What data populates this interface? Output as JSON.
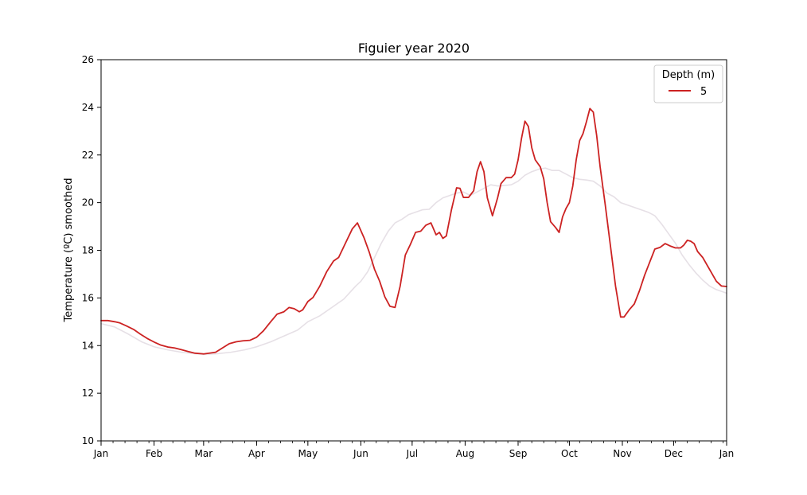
{
  "chart_data": {
    "type": "line",
    "title": "Figuier year 2020",
    "xlabel": "",
    "ylabel": "Temperature (ºC) smoothed",
    "ylim": [
      10,
      26
    ],
    "xlim": [
      "2020-01-01",
      "2021-01-01"
    ],
    "yticks": [
      10,
      12,
      14,
      16,
      18,
      20,
      22,
      24,
      26
    ],
    "xticks": [
      {
        "date": "2020-01-01",
        "label": "Jan"
      },
      {
        "date": "2020-02-01",
        "label": "Feb"
      },
      {
        "date": "2020-03-01",
        "label": "Mar"
      },
      {
        "date": "2020-04-01",
        "label": "Apr"
      },
      {
        "date": "2020-05-01",
        "label": "May"
      },
      {
        "date": "2020-06-01",
        "label": "Jun"
      },
      {
        "date": "2020-07-01",
        "label": "Jul"
      },
      {
        "date": "2020-08-01",
        "label": "Aug"
      },
      {
        "date": "2020-09-01",
        "label": "Sep"
      },
      {
        "date": "2020-10-01",
        "label": "Oct"
      },
      {
        "date": "2020-11-01",
        "label": "Nov"
      },
      {
        "date": "2020-12-01",
        "label": "Dec"
      },
      {
        "date": "2021-01-01",
        "label": "Jan"
      }
    ],
    "grid": false,
    "legend": {
      "title": "Depth (m)",
      "placement": "top-right"
    },
    "series": [
      {
        "name": "5",
        "color": "#cc2222",
        "points": [
          [
            "2020-01-01",
            15.05
          ],
          [
            "2020-01-05",
            15.05
          ],
          [
            "2020-01-09",
            15.0
          ],
          [
            "2020-01-12",
            14.95
          ],
          [
            "2020-01-16",
            14.82
          ],
          [
            "2020-01-20",
            14.68
          ],
          [
            "2020-01-24",
            14.48
          ],
          [
            "2020-01-28",
            14.3
          ],
          [
            "2020-02-01",
            14.15
          ],
          [
            "2020-02-05",
            14.02
          ],
          [
            "2020-02-09",
            13.94
          ],
          [
            "2020-02-13",
            13.9
          ],
          [
            "2020-02-17",
            13.83
          ],
          [
            "2020-02-21",
            13.75
          ],
          [
            "2020-02-25",
            13.68
          ],
          [
            "2020-03-01",
            13.65
          ],
          [
            "2020-03-04",
            13.68
          ],
          [
            "2020-03-08",
            13.72
          ],
          [
            "2020-03-12",
            13.9
          ],
          [
            "2020-03-16",
            14.08
          ],
          [
            "2020-03-20",
            14.16
          ],
          [
            "2020-03-24",
            14.2
          ],
          [
            "2020-03-28",
            14.22
          ],
          [
            "2020-04-01",
            14.35
          ],
          [
            "2020-04-05",
            14.62
          ],
          [
            "2020-04-09",
            14.98
          ],
          [
            "2020-04-13",
            15.32
          ],
          [
            "2020-04-17",
            15.42
          ],
          [
            "2020-04-20",
            15.6
          ],
          [
            "2020-04-23",
            15.55
          ],
          [
            "2020-04-26",
            15.42
          ],
          [
            "2020-04-28",
            15.5
          ],
          [
            "2020-05-01",
            15.85
          ],
          [
            "2020-05-04",
            16.02
          ],
          [
            "2020-05-08",
            16.5
          ],
          [
            "2020-05-12",
            17.1
          ],
          [
            "2020-05-16",
            17.55
          ],
          [
            "2020-05-19",
            17.7
          ],
          [
            "2020-05-23",
            18.3
          ],
          [
            "2020-05-27",
            18.9
          ],
          [
            "2020-05-30",
            19.15
          ],
          [
            "2020-06-03",
            18.5
          ],
          [
            "2020-06-06",
            17.9
          ],
          [
            "2020-06-09",
            17.2
          ],
          [
            "2020-06-12",
            16.7
          ],
          [
            "2020-06-15",
            16.05
          ],
          [
            "2020-06-18",
            15.65
          ],
          [
            "2020-06-21",
            15.6
          ],
          [
            "2020-06-24",
            16.5
          ],
          [
            "2020-06-27",
            17.8
          ],
          [
            "2020-06-30",
            18.25
          ],
          [
            "2020-07-03",
            18.75
          ],
          [
            "2020-07-06",
            18.8
          ],
          [
            "2020-07-09",
            19.05
          ],
          [
            "2020-07-12",
            19.15
          ],
          [
            "2020-07-15",
            18.65
          ],
          [
            "2020-07-17",
            18.75
          ],
          [
            "2020-07-19",
            18.5
          ],
          [
            "2020-07-21",
            18.6
          ],
          [
            "2020-07-24",
            19.7
          ],
          [
            "2020-07-27",
            20.62
          ],
          [
            "2020-07-29",
            20.6
          ],
          [
            "2020-07-31",
            20.22
          ],
          [
            "2020-08-03",
            20.22
          ],
          [
            "2020-08-06",
            20.5
          ],
          [
            "2020-08-08",
            21.3
          ],
          [
            "2020-08-10",
            21.72
          ],
          [
            "2020-08-12",
            21.3
          ],
          [
            "2020-08-14",
            20.2
          ],
          [
            "2020-08-17",
            19.45
          ],
          [
            "2020-08-20",
            20.2
          ],
          [
            "2020-08-22",
            20.8
          ],
          [
            "2020-08-25",
            21.05
          ],
          [
            "2020-08-28",
            21.05
          ],
          [
            "2020-08-30",
            21.2
          ],
          [
            "2020-09-01",
            21.8
          ],
          [
            "2020-09-03",
            22.7
          ],
          [
            "2020-09-05",
            23.42
          ],
          [
            "2020-09-07",
            23.2
          ],
          [
            "2020-09-09",
            22.3
          ],
          [
            "2020-09-11",
            21.8
          ],
          [
            "2020-09-14",
            21.5
          ],
          [
            "2020-09-16",
            21.0
          ],
          [
            "2020-09-18",
            20.0
          ],
          [
            "2020-09-20",
            19.2
          ],
          [
            "2020-09-23",
            18.95
          ],
          [
            "2020-09-25",
            18.75
          ],
          [
            "2020-09-27",
            19.4
          ],
          [
            "2020-09-29",
            19.75
          ],
          [
            "2020-10-01",
            20.0
          ],
          [
            "2020-10-03",
            20.7
          ],
          [
            "2020-10-05",
            21.8
          ],
          [
            "2020-10-07",
            22.6
          ],
          [
            "2020-10-09",
            22.9
          ],
          [
            "2020-10-11",
            23.4
          ],
          [
            "2020-10-13",
            23.95
          ],
          [
            "2020-10-15",
            23.8
          ],
          [
            "2020-10-17",
            22.8
          ],
          [
            "2020-10-19",
            21.5
          ],
          [
            "2020-10-22",
            19.9
          ],
          [
            "2020-10-25",
            18.2
          ],
          [
            "2020-10-28",
            16.5
          ],
          [
            "2020-10-31",
            15.2
          ],
          [
            "2020-11-02",
            15.2
          ],
          [
            "2020-11-05",
            15.5
          ],
          [
            "2020-11-08",
            15.75
          ],
          [
            "2020-11-11",
            16.3
          ],
          [
            "2020-11-14",
            16.95
          ],
          [
            "2020-11-17",
            17.5
          ],
          [
            "2020-11-20",
            18.05
          ],
          [
            "2020-11-23",
            18.12
          ],
          [
            "2020-11-26",
            18.28
          ],
          [
            "2020-11-29",
            18.18
          ],
          [
            "2020-12-02",
            18.1
          ],
          [
            "2020-12-05",
            18.1
          ],
          [
            "2020-12-07",
            18.22
          ],
          [
            "2020-12-09",
            18.42
          ],
          [
            "2020-12-11",
            18.38
          ],
          [
            "2020-12-13",
            18.28
          ],
          [
            "2020-12-15",
            17.95
          ],
          [
            "2020-12-18",
            17.7
          ],
          [
            "2020-12-22",
            17.2
          ],
          [
            "2020-12-26",
            16.7
          ],
          [
            "2020-12-29",
            16.5
          ],
          [
            "2021-01-01",
            16.48
          ]
        ]
      },
      {
        "name": "",
        "color": "#e6e0e6",
        "points": [
          [
            "2020-01-01",
            14.92
          ],
          [
            "2020-01-09",
            14.78
          ],
          [
            "2020-01-17",
            14.48
          ],
          [
            "2020-01-25",
            14.15
          ],
          [
            "2020-02-01",
            13.95
          ],
          [
            "2020-02-09",
            13.82
          ],
          [
            "2020-02-17",
            13.72
          ],
          [
            "2020-02-25",
            13.66
          ],
          [
            "2020-03-01",
            13.63
          ],
          [
            "2020-03-09",
            13.66
          ],
          [
            "2020-03-17",
            13.72
          ],
          [
            "2020-03-25",
            13.82
          ],
          [
            "2020-04-01",
            13.95
          ],
          [
            "2020-04-09",
            14.15
          ],
          [
            "2020-04-17",
            14.4
          ],
          [
            "2020-04-25",
            14.65
          ],
          [
            "2020-05-01",
            15.0
          ],
          [
            "2020-05-08",
            15.25
          ],
          [
            "2020-05-15",
            15.6
          ],
          [
            "2020-05-22",
            15.95
          ],
          [
            "2020-05-29",
            16.5
          ],
          [
            "2020-06-01",
            16.7
          ],
          [
            "2020-06-05",
            17.1
          ],
          [
            "2020-06-09",
            17.7
          ],
          [
            "2020-06-13",
            18.3
          ],
          [
            "2020-06-17",
            18.8
          ],
          [
            "2020-06-21",
            19.15
          ],
          [
            "2020-06-25",
            19.3
          ],
          [
            "2020-06-29",
            19.5
          ],
          [
            "2020-07-03",
            19.6
          ],
          [
            "2020-07-07",
            19.7
          ],
          [
            "2020-07-11",
            19.72
          ],
          [
            "2020-07-15",
            20.0
          ],
          [
            "2020-07-19",
            20.2
          ],
          [
            "2020-07-23",
            20.3
          ],
          [
            "2020-07-27",
            20.4
          ],
          [
            "2020-07-31",
            20.45
          ],
          [
            "2020-08-04",
            20.3
          ],
          [
            "2020-08-08",
            20.45
          ],
          [
            "2020-08-12",
            20.6
          ],
          [
            "2020-08-16",
            20.75
          ],
          [
            "2020-08-20",
            20.7
          ],
          [
            "2020-08-24",
            20.72
          ],
          [
            "2020-08-28",
            20.75
          ],
          [
            "2020-09-01",
            20.9
          ],
          [
            "2020-09-05",
            21.15
          ],
          [
            "2020-09-09",
            21.3
          ],
          [
            "2020-09-13",
            21.4
          ],
          [
            "2020-09-17",
            21.45
          ],
          [
            "2020-09-21",
            21.35
          ],
          [
            "2020-09-25",
            21.35
          ],
          [
            "2020-09-29",
            21.2
          ],
          [
            "2020-10-03",
            21.05
          ],
          [
            "2020-10-07",
            20.98
          ],
          [
            "2020-10-11",
            20.95
          ],
          [
            "2020-10-15",
            20.9
          ],
          [
            "2020-10-19",
            20.7
          ],
          [
            "2020-10-23",
            20.4
          ],
          [
            "2020-10-27",
            20.25
          ],
          [
            "2020-10-31",
            20.0
          ],
          [
            "2020-11-04",
            19.9
          ],
          [
            "2020-11-08",
            19.8
          ],
          [
            "2020-11-12",
            19.7
          ],
          [
            "2020-11-16",
            19.6
          ],
          [
            "2020-11-20",
            19.45
          ],
          [
            "2020-11-24",
            19.1
          ],
          [
            "2020-11-28",
            18.7
          ],
          [
            "2020-12-02",
            18.3
          ],
          [
            "2020-12-06",
            17.8
          ],
          [
            "2020-12-10",
            17.4
          ],
          [
            "2020-12-14",
            17.05
          ],
          [
            "2020-12-18",
            16.75
          ],
          [
            "2020-12-22",
            16.5
          ],
          [
            "2020-12-26",
            16.35
          ],
          [
            "2021-01-01",
            16.2
          ]
        ]
      }
    ]
  }
}
